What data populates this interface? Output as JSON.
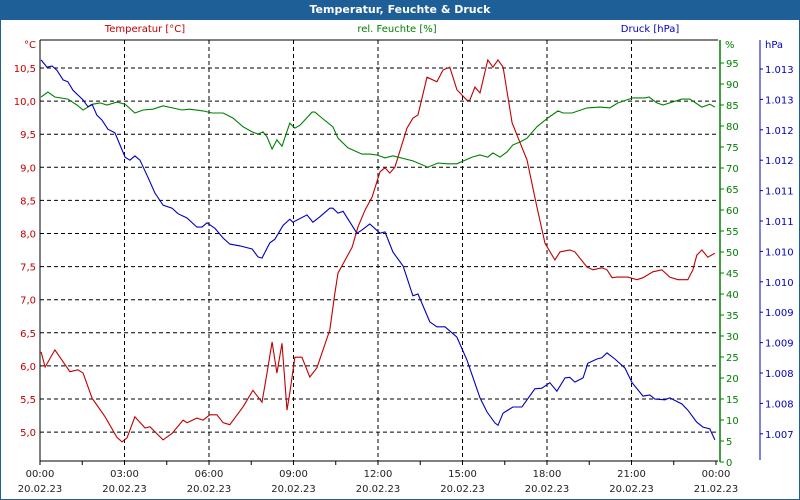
{
  "title": "Temperatur, Feuchte & Druck",
  "colors": {
    "titlebar": "#1d5f96",
    "temperature": "#c00000",
    "humidity": "#008000",
    "pressure": "#0000c0"
  },
  "chart_data": {
    "type": "line",
    "title": "Temperatur, Feuchte & Druck",
    "xlabel": "",
    "x_unit": "hours since 20.02.23 00:00",
    "xlim": [
      0,
      24
    ],
    "x_ticks": [
      {
        "time": "00:00",
        "date": "20.02.23"
      },
      {
        "time": "03:00",
        "date": "20.02.23"
      },
      {
        "time": "06:00",
        "date": "20.02.23"
      },
      {
        "time": "09:00",
        "date": "20.02.23"
      },
      {
        "time": "12:00",
        "date": "20.02.23"
      },
      {
        "time": "15:00",
        "date": "20.02.23"
      },
      {
        "time": "18:00",
        "date": "20.02.23"
      },
      {
        "time": "21:00",
        "date": "20.02.23"
      },
      {
        "time": "00:00",
        "date": "21.02.23"
      }
    ],
    "grid": true,
    "axes": {
      "temperature": {
        "legend": "Temperatur [°C]",
        "unit": "°C",
        "side": "left",
        "ylim": [
          4.52,
          10.89
        ],
        "ticks": [
          "10,5",
          "10,0",
          "9,5",
          "9,0",
          "8,5",
          "8,0",
          "7,5",
          "7,0",
          "6,5",
          "6,0",
          "5,5",
          "5,0"
        ]
      },
      "humidity": {
        "legend": "rel. Feuchte [%]",
        "unit": "%",
        "side": "right",
        "ylim": [
          0,
          100
        ],
        "ticks": [
          "95",
          "90",
          "85",
          "80",
          "75",
          "70",
          "65",
          "60",
          "55",
          "50",
          "45",
          "40",
          "35",
          "30",
          "25",
          "20",
          "15",
          "10",
          "5",
          "0"
        ]
      },
      "pressure": {
        "legend": "Druck [hPa]",
        "unit": "hPa",
        "side": "right-outer",
        "ylim": [
          1006.6,
          1013.5
        ],
        "ticks": [
          "1.013",
          "1.013",
          "1.012",
          "1.012",
          "1.011",
          "1.011",
          "1.010",
          "1.010",
          "1.009",
          "1.009",
          "1.008",
          "1.008",
          "1.007"
        ]
      }
    },
    "series": [
      {
        "name": "Temperatur [°C]",
        "axis": "temperature",
        "points": [
          [
            0.04,
            6.18
          ],
          [
            0.18,
            5.95
          ],
          [
            0.53,
            6.21
          ],
          [
            0.82,
            6.03
          ],
          [
            1.06,
            5.88
          ],
          [
            1.35,
            5.91
          ],
          [
            1.53,
            5.86
          ],
          [
            1.85,
            5.48
          ],
          [
            2.31,
            5.2
          ],
          [
            2.73,
            4.89
          ],
          [
            2.91,
            4.82
          ],
          [
            3.09,
            4.88
          ],
          [
            3.37,
            5.2
          ],
          [
            3.73,
            5.03
          ],
          [
            3.9,
            5.05
          ],
          [
            4.37,
            4.85
          ],
          [
            4.69,
            4.95
          ],
          [
            5.08,
            5.15
          ],
          [
            5.22,
            5.11
          ],
          [
            5.57,
            5.18
          ],
          [
            5.79,
            5.15
          ],
          [
            6.03,
            5.23
          ],
          [
            6.28,
            5.23
          ],
          [
            6.5,
            5.11
          ],
          [
            6.74,
            5.08
          ],
          [
            7.21,
            5.35
          ],
          [
            7.56,
            5.6
          ],
          [
            7.88,
            5.42
          ],
          [
            8.06,
            5.86
          ],
          [
            8.24,
            6.33
          ],
          [
            8.41,
            5.86
          ],
          [
            8.59,
            6.31
          ],
          [
            8.77,
            5.3
          ],
          [
            8.87,
            5.56
          ],
          [
            9.05,
            6.1
          ],
          [
            9.3,
            6.1
          ],
          [
            9.58,
            5.8
          ],
          [
            9.83,
            5.94
          ],
          [
            10.29,
            6.51
          ],
          [
            10.47,
            7.07
          ],
          [
            10.58,
            7.37
          ],
          [
            11.08,
            7.76
          ],
          [
            11.29,
            8.07
          ],
          [
            11.54,
            8.32
          ],
          [
            11.79,
            8.52
          ],
          [
            12.07,
            8.9
          ],
          [
            12.25,
            8.96
          ],
          [
            12.42,
            8.88
          ],
          [
            12.6,
            8.97
          ],
          [
            13.03,
            9.56
          ],
          [
            13.24,
            9.71
          ],
          [
            13.42,
            9.76
          ],
          [
            13.74,
            10.33
          ],
          [
            14.09,
            10.26
          ],
          [
            14.31,
            10.44
          ],
          [
            14.55,
            10.48
          ],
          [
            14.8,
            10.14
          ],
          [
            15.16,
            9.98
          ],
          [
            15.26,
            9.98
          ],
          [
            15.44,
            10.18
          ],
          [
            15.62,
            10.09
          ],
          [
            15.9,
            10.59
          ],
          [
            16.08,
            10.48
          ],
          [
            16.26,
            10.59
          ],
          [
            16.44,
            10.48
          ],
          [
            16.76,
            9.64
          ],
          [
            17.11,
            9.27
          ],
          [
            17.29,
            9.08
          ],
          [
            17.64,
            8.37
          ],
          [
            17.93,
            7.82
          ],
          [
            18.28,
            7.57
          ],
          [
            18.46,
            7.69
          ],
          [
            18.81,
            7.72
          ],
          [
            18.99,
            7.69
          ],
          [
            19.42,
            7.46
          ],
          [
            19.63,
            7.42
          ],
          [
            19.95,
            7.45
          ],
          [
            20.13,
            7.42
          ],
          [
            20.31,
            7.3
          ],
          [
            20.48,
            7.31
          ],
          [
            20.87,
            7.31
          ],
          [
            21.19,
            7.27
          ],
          [
            21.41,
            7.3
          ],
          [
            21.76,
            7.39
          ],
          [
            22.08,
            7.42
          ],
          [
            22.36,
            7.31
          ],
          [
            22.65,
            7.27
          ],
          [
            23.0,
            7.27
          ],
          [
            23.18,
            7.42
          ],
          [
            23.32,
            7.64
          ],
          [
            23.5,
            7.72
          ],
          [
            23.71,
            7.61
          ],
          [
            23.96,
            7.67
          ]
        ]
      },
      {
        "name": "rel. Feuchte [%]",
        "axis": "humidity",
        "points": [
          [
            0.04,
            86.9
          ],
          [
            0.28,
            88.1
          ],
          [
            0.53,
            86.9
          ],
          [
            0.99,
            86.4
          ],
          [
            1.31,
            85.0
          ],
          [
            1.53,
            83.8
          ],
          [
            1.88,
            85.2
          ],
          [
            2.13,
            85.5
          ],
          [
            2.38,
            85.0
          ],
          [
            2.73,
            85.7
          ],
          [
            3.02,
            85.2
          ],
          [
            3.37,
            83.1
          ],
          [
            3.66,
            83.8
          ],
          [
            4.01,
            84.0
          ],
          [
            4.37,
            84.8
          ],
          [
            5.04,
            83.8
          ],
          [
            5.32,
            84.0
          ],
          [
            5.79,
            83.6
          ],
          [
            6.11,
            83.1
          ],
          [
            6.5,
            83.1
          ],
          [
            6.85,
            81.9
          ],
          [
            7.21,
            79.8
          ],
          [
            7.53,
            78.6
          ],
          [
            7.74,
            78.1
          ],
          [
            7.92,
            78.6
          ],
          [
            8.06,
            77.4
          ],
          [
            8.24,
            74.5
          ],
          [
            8.41,
            76.7
          ],
          [
            8.59,
            75.2
          ],
          [
            8.87,
            80.7
          ],
          [
            9.05,
            79.5
          ],
          [
            9.23,
            80.2
          ],
          [
            9.66,
            83.3
          ],
          [
            9.76,
            83.3
          ],
          [
            10.01,
            81.9
          ],
          [
            10.4,
            79.8
          ],
          [
            10.58,
            77.1
          ],
          [
            10.93,
            74.8
          ],
          [
            11.43,
            73.3
          ],
          [
            11.71,
            73.3
          ],
          [
            11.96,
            73.1
          ],
          [
            12.25,
            72.4
          ],
          [
            12.53,
            72.9
          ],
          [
            13.24,
            71.7
          ],
          [
            13.77,
            70.2
          ],
          [
            14.13,
            71.2
          ],
          [
            14.45,
            71.0
          ],
          [
            14.8,
            71.0
          ],
          [
            15.34,
            72.6
          ],
          [
            15.62,
            73.1
          ],
          [
            15.9,
            72.6
          ],
          [
            16.08,
            73.6
          ],
          [
            16.33,
            72.6
          ],
          [
            16.58,
            73.8
          ],
          [
            16.79,
            75.5
          ],
          [
            17.04,
            76.2
          ],
          [
            17.29,
            77.1
          ],
          [
            17.64,
            79.8
          ],
          [
            18.03,
            81.9
          ],
          [
            18.39,
            83.6
          ],
          [
            18.57,
            83.1
          ],
          [
            18.89,
            83.1
          ],
          [
            19.42,
            84.3
          ],
          [
            19.88,
            84.5
          ],
          [
            20.23,
            84.3
          ],
          [
            20.52,
            85.5
          ],
          [
            21.05,
            86.7
          ],
          [
            21.48,
            86.7
          ],
          [
            21.62,
            86.9
          ],
          [
            21.9,
            85.5
          ],
          [
            22.12,
            85.0
          ],
          [
            22.44,
            85.7
          ],
          [
            22.79,
            86.4
          ],
          [
            23.07,
            86.4
          ],
          [
            23.5,
            84.5
          ],
          [
            23.78,
            85.2
          ],
          [
            23.96,
            84.5
          ]
        ]
      },
      {
        "name": "Druck [hPa]",
        "axis": "pressure",
        "points": [
          [
            0.04,
            1013.15
          ],
          [
            0.25,
            1013.03
          ],
          [
            0.43,
            1013.05
          ],
          [
            0.6,
            1012.98
          ],
          [
            0.82,
            1012.82
          ],
          [
            0.99,
            1012.79
          ],
          [
            1.17,
            1012.65
          ],
          [
            1.53,
            1012.49
          ],
          [
            1.7,
            1012.38
          ],
          [
            1.85,
            1012.42
          ],
          [
            2.02,
            1012.24
          ],
          [
            2.2,
            1012.16
          ],
          [
            2.41,
            1012.01
          ],
          [
            2.66,
            1011.95
          ],
          [
            2.77,
            1011.83
          ],
          [
            3.02,
            1011.55
          ],
          [
            3.19,
            1011.5
          ],
          [
            3.37,
            1011.57
          ],
          [
            3.55,
            1011.5
          ],
          [
            3.83,
            1011.22
          ],
          [
            4.08,
            1010.96
          ],
          [
            4.37,
            1010.76
          ],
          [
            4.69,
            1010.71
          ],
          [
            4.9,
            1010.62
          ],
          [
            5.22,
            1010.55
          ],
          [
            5.57,
            1010.4
          ],
          [
            5.75,
            1010.4
          ],
          [
            5.93,
            1010.47
          ],
          [
            6.21,
            1010.38
          ],
          [
            6.5,
            1010.22
          ],
          [
            6.74,
            1010.12
          ],
          [
            7.1,
            1010.09
          ],
          [
            7.53,
            1010.04
          ],
          [
            7.74,
            1009.91
          ],
          [
            7.88,
            1009.89
          ],
          [
            8.16,
            1010.14
          ],
          [
            8.34,
            1010.2
          ],
          [
            8.63,
            1010.43
          ],
          [
            8.87,
            1010.53
          ],
          [
            8.98,
            1010.48
          ],
          [
            9.48,
            1010.6
          ],
          [
            9.69,
            1010.48
          ],
          [
            9.94,
            1010.57
          ],
          [
            10.29,
            1010.71
          ],
          [
            10.4,
            1010.71
          ],
          [
            10.58,
            1010.63
          ],
          [
            10.76,
            1010.66
          ],
          [
            11.25,
            1010.3
          ],
          [
            11.43,
            1010.35
          ],
          [
            11.71,
            1010.45
          ],
          [
            12.07,
            1010.3
          ],
          [
            12.25,
            1010.32
          ],
          [
            12.53,
            1009.99
          ],
          [
            12.89,
            1009.76
          ],
          [
            13.24,
            1009.27
          ],
          [
            13.42,
            1009.3
          ],
          [
            13.84,
            1008.84
          ],
          [
            14.09,
            1008.76
          ],
          [
            14.38,
            1008.76
          ],
          [
            14.63,
            1008.66
          ],
          [
            14.8,
            1008.59
          ],
          [
            15.16,
            1008.21
          ],
          [
            15.62,
            1007.59
          ],
          [
            15.87,
            1007.36
          ],
          [
            16.15,
            1007.18
          ],
          [
            16.26,
            1007.14
          ],
          [
            16.44,
            1007.34
          ],
          [
            16.79,
            1007.44
          ],
          [
            17.11,
            1007.44
          ],
          [
            17.29,
            1007.56
          ],
          [
            17.57,
            1007.74
          ],
          [
            17.82,
            1007.75
          ],
          [
            18.1,
            1007.84
          ],
          [
            18.35,
            1007.7
          ],
          [
            18.64,
            1007.92
          ],
          [
            18.81,
            1007.93
          ],
          [
            18.99,
            1007.85
          ],
          [
            19.28,
            1007.92
          ],
          [
            19.45,
            1008.16
          ],
          [
            19.77,
            1008.23
          ],
          [
            19.95,
            1008.25
          ],
          [
            20.13,
            1008.33
          ],
          [
            20.41,
            1008.23
          ],
          [
            20.77,
            1008.08
          ],
          [
            21.02,
            1007.84
          ],
          [
            21.41,
            1007.62
          ],
          [
            21.65,
            1007.64
          ],
          [
            21.83,
            1007.57
          ],
          [
            22.19,
            1007.56
          ],
          [
            22.36,
            1007.59
          ],
          [
            22.79,
            1007.49
          ],
          [
            23.0,
            1007.39
          ],
          [
            23.32,
            1007.19
          ],
          [
            23.54,
            1007.11
          ],
          [
            23.78,
            1007.08
          ],
          [
            23.96,
            1006.9
          ]
        ]
      }
    ]
  }
}
